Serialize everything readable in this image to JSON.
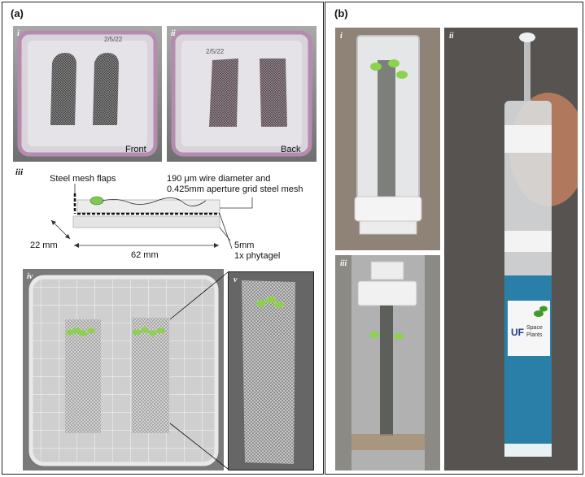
{
  "panel_a": {
    "label": "(a)",
    "sub_i": "i",
    "sub_ii": "ii",
    "sub_iii": "iii",
    "sub_iv": "iv",
    "sub_v": "v",
    "caption_front": "Front",
    "caption_back": "Back",
    "dish_date_i": "2/5/22",
    "dish_date_ii": "2/5/22",
    "diagram": {
      "mesh_flaps": "Steel mesh flaps",
      "mesh_spec_line1": "190 μm wire diameter and",
      "mesh_spec_line2": "0.425mm aperture grid steel mesh",
      "width_dim": "22 mm",
      "length_dim": "62 mm",
      "gel_thickness": "5mm",
      "gel_type": "1x phytagel"
    }
  },
  "panel_b": {
    "label": "(b)",
    "sub_i": "i",
    "sub_ii": "ii",
    "sub_iii": "iii",
    "logo_text_uf": "UF",
    "logo_text_space": "Space",
    "logo_text_plants": "Plants"
  },
  "colors": {
    "panel_border": "#222222",
    "plant_green": "#7ec850",
    "coolant_blue": "#2a7fa8",
    "dish_pink": "#b58bb0"
  }
}
